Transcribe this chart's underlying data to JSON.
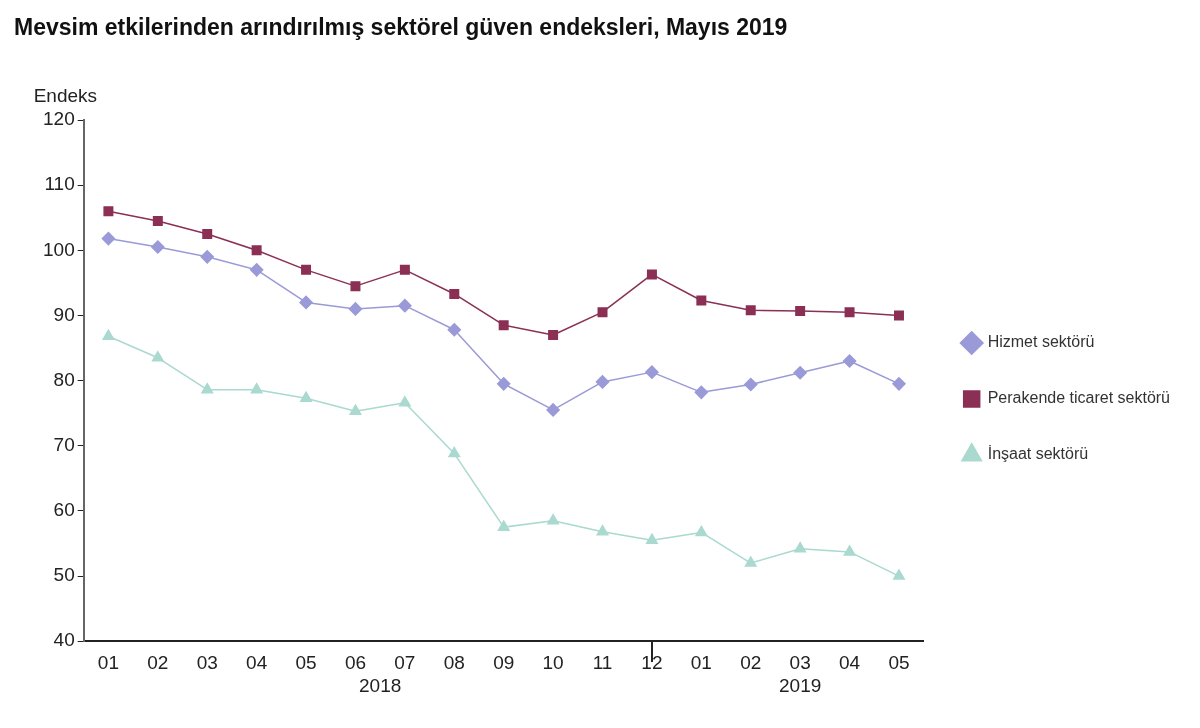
{
  "chart_data": {
    "type": "line",
    "title": "Mevsim etkilerinden arındırılmış sektörel güven endeksleri, Mayıs 2019",
    "ylabel": "Endeks",
    "categories": [
      "01",
      "02",
      "03",
      "04",
      "05",
      "06",
      "07",
      "08",
      "09",
      "10",
      "11",
      "12",
      "01",
      "02",
      "03",
      "04",
      "05"
    ],
    "series": [
      {
        "name": "Hizmet sektörü",
        "color": "#9a9ad8",
        "marker": "diamond",
        "values": [
          101.8,
          100.5,
          99,
          97,
          92,
          91,
          91.5,
          87.8,
          79.5,
          75.5,
          79.8,
          81.3,
          78.2,
          79.4,
          81.2,
          83,
          79.5
        ]
      },
      {
        "name": "Perakende ticaret sektörü",
        "color": "#8b2f55",
        "marker": "square",
        "values": [
          106,
          104.5,
          102.5,
          100,
          97,
          94.5,
          97,
          93.3,
          88.5,
          87,
          90.5,
          96.3,
          92.3,
          90.8,
          90.7,
          90.5,
          90
        ]
      },
      {
        "name": "İnşaat sektörü",
        "color": "#a9d9cf",
        "marker": "triangle",
        "values": [
          86.8,
          83.5,
          78.6,
          78.6,
          77.3,
          75.3,
          76.6,
          68.8,
          57.5,
          58.5,
          56.8,
          55.5,
          56.7,
          52,
          54.2,
          53.7,
          50
        ]
      }
    ],
    "ylim": [
      40,
      120
    ],
    "yticks": [
      40,
      50,
      60,
      70,
      80,
      90,
      100,
      110,
      120
    ],
    "grid": false,
    "legend": "right",
    "annotations": [
      "2018",
      "2019"
    ]
  }
}
